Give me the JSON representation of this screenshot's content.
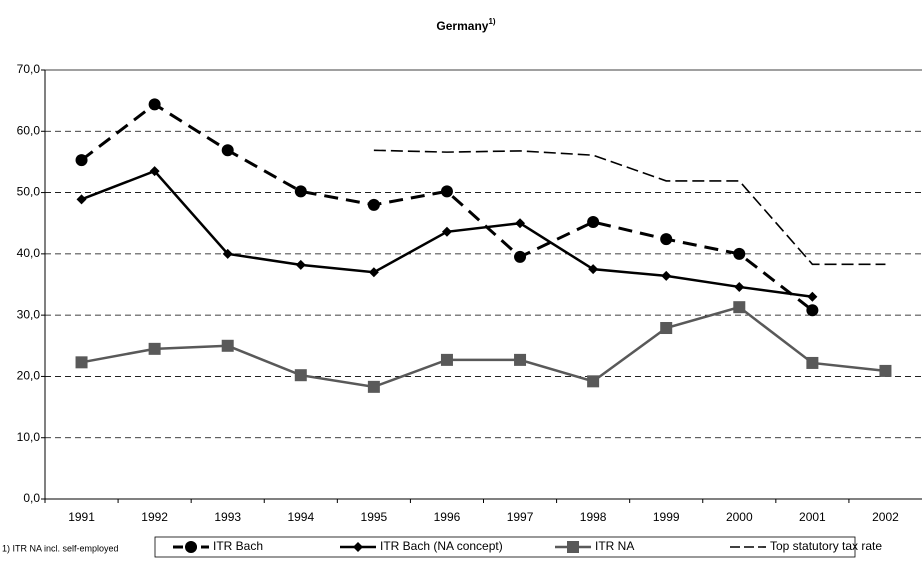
{
  "chart_data": {
    "type": "line",
    "title": "Germany",
    "title_note_marker": "1)",
    "note": "1) ITR NA incl. self-employed",
    "categories": [
      "1991",
      "1992",
      "1993",
      "1994",
      "1995",
      "1996",
      "1997",
      "1998",
      "1999",
      "2000",
      "2001",
      "2002"
    ],
    "series": [
      {
        "name": "ITR Bach",
        "color": "#000000",
        "marker": "circle",
        "line_style": "dashed",
        "values": [
          55.3,
          64.4,
          56.9,
          50.2,
          48.0,
          50.2,
          39.5,
          45.2,
          42.4,
          40.0,
          30.8,
          null
        ]
      },
      {
        "name": "ITR Bach (NA concept)",
        "color": "#000000",
        "marker": "diamond",
        "line_style": "solid",
        "values": [
          48.9,
          53.5,
          40.0,
          38.2,
          37.0,
          43.6,
          45.0,
          37.5,
          36.4,
          34.6,
          33.0,
          null
        ]
      },
      {
        "name": "ITR NA",
        "color": "#595959",
        "marker": "square",
        "line_style": "solid",
        "values": [
          22.3,
          24.5,
          25.0,
          20.2,
          18.3,
          22.7,
          22.7,
          19.2,
          27.9,
          31.3,
          22.2,
          20.9
        ]
      },
      {
        "name": "Top statutory tax rate",
        "color": "#000000",
        "marker": "none",
        "line_style": "thin-dashed",
        "values": [
          null,
          null,
          null,
          null,
          56.9,
          56.6,
          56.8,
          56.1,
          51.9,
          51.9,
          38.3,
          38.3
        ]
      }
    ],
    "ylim": [
      0,
      70
    ],
    "yticks": [
      {
        "value": 0,
        "label": "0,0"
      },
      {
        "value": 10,
        "label": "10,0"
      },
      {
        "value": 20,
        "label": "20,0"
      },
      {
        "value": 30,
        "label": "30,0"
      },
      {
        "value": 40,
        "label": "40,0"
      },
      {
        "value": 50,
        "label": "50,0"
      },
      {
        "value": 60,
        "label": "60,0"
      },
      {
        "value": 70,
        "label": "70,0"
      }
    ],
    "grid": true,
    "legend": "bottom"
  }
}
